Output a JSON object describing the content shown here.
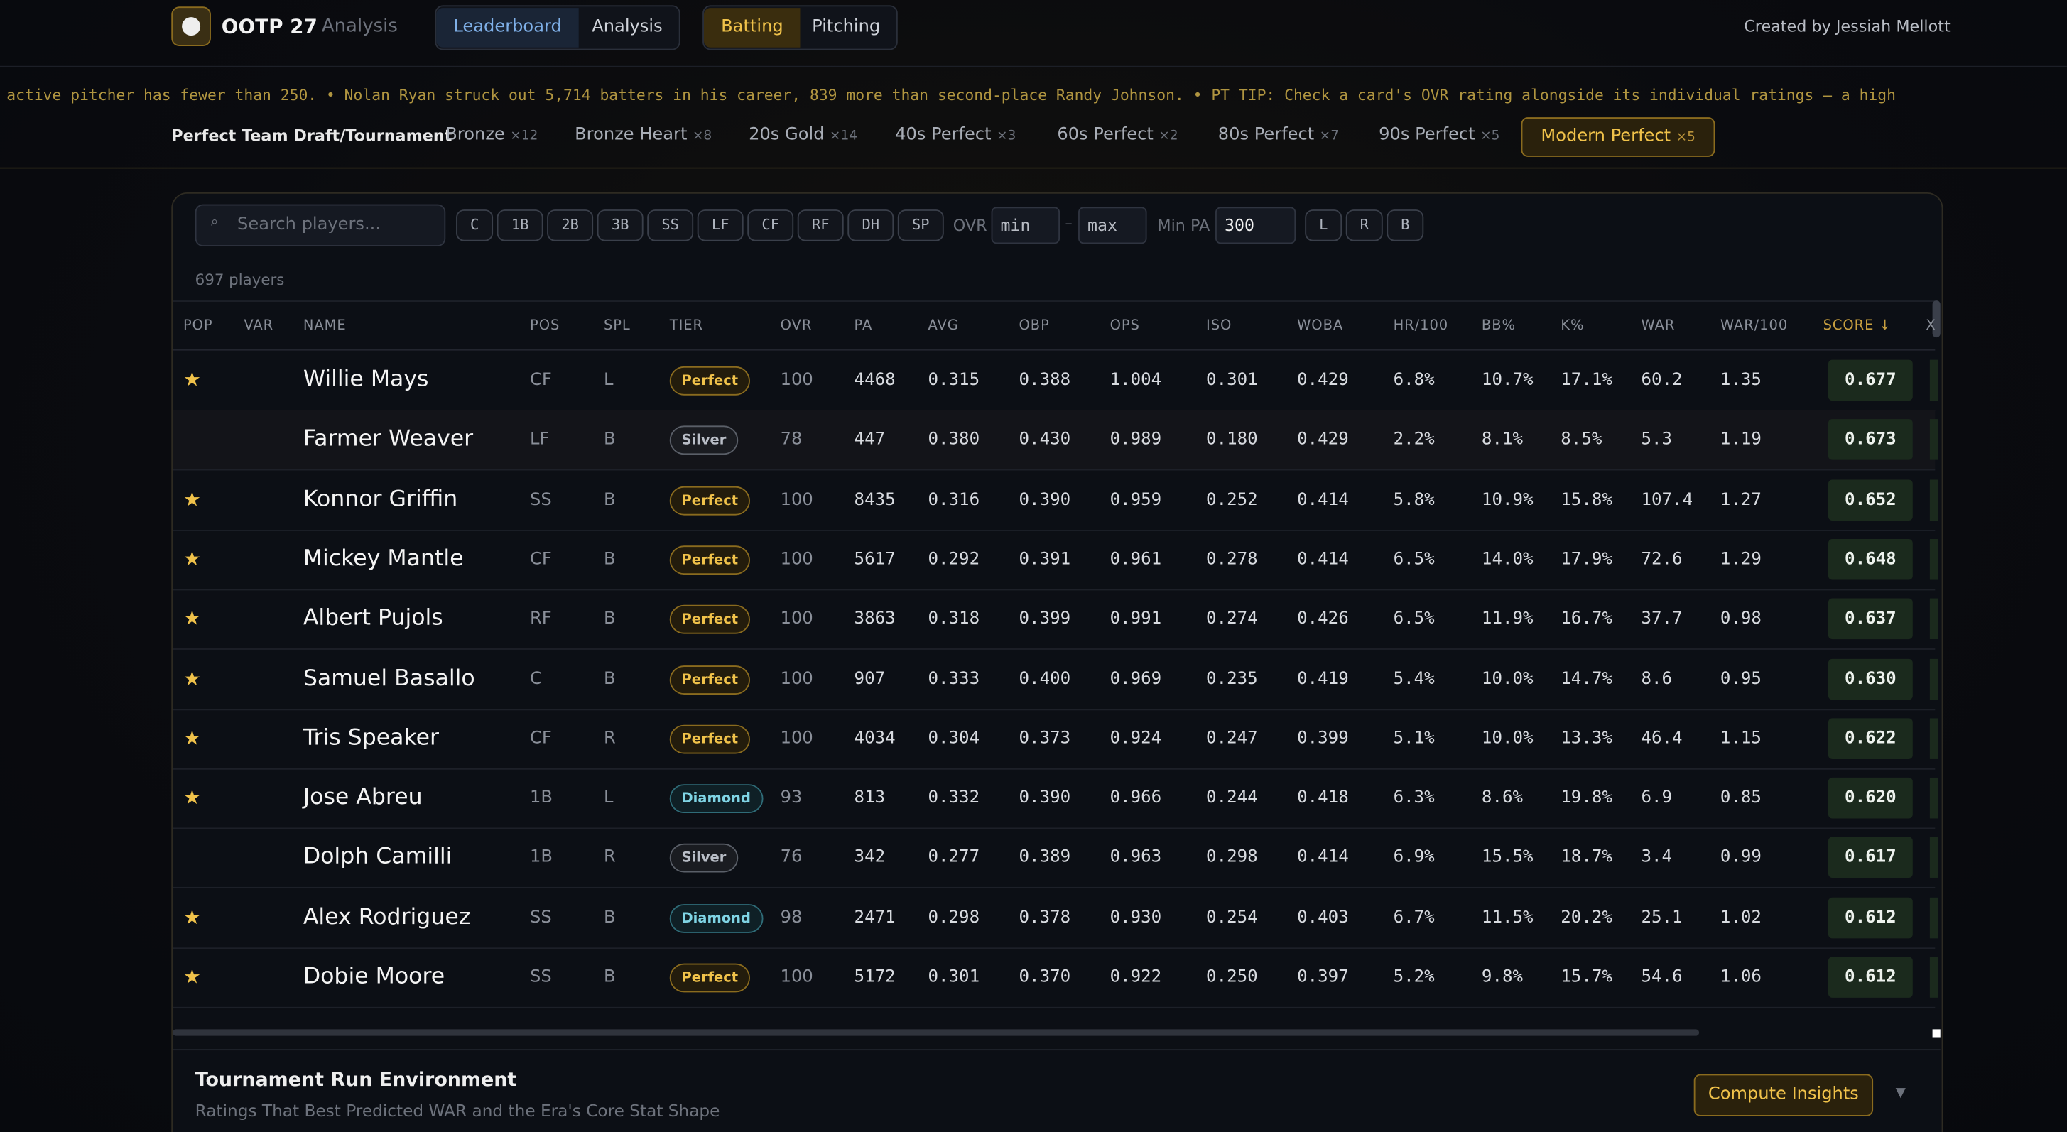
{
  "header": {
    "title": "OOTP 27",
    "subtitle": "Analysis",
    "nav": [
      "Leaderboard",
      "Analysis"
    ],
    "mode": [
      "Batting",
      "Pitching"
    ],
    "credit": "Created by Jessiah Mellott"
  },
  "ticker": "active pitcher has fewer than 250. • Nolan Ryan struck out 5,714 batters in his career, 839 more than second-place Randy Johnson. • PT TIP: Check a card's OVR rating alongside its individual ratings — a high",
  "tabs": {
    "label": "Perfect Team Draft/Tournament",
    "items": [
      {
        "name": "Bronze",
        "count": "×12"
      },
      {
        "name": "Bronze Heart",
        "count": "×8"
      },
      {
        "name": "20s Gold",
        "count": "×14"
      },
      {
        "name": "40s Perfect",
        "count": "×3"
      },
      {
        "name": "60s Perfect",
        "count": "×2"
      },
      {
        "name": "80s Perfect",
        "count": "×7"
      },
      {
        "name": "90s Perfect",
        "count": "×5"
      },
      {
        "name": "Modern Perfect",
        "count": "×5"
      }
    ]
  },
  "toolbar": {
    "search_placeholder": "Search players...",
    "positions": [
      "C",
      "1B",
      "2B",
      "3B",
      "SS",
      "LF",
      "CF",
      "RF",
      "DH",
      "SP"
    ],
    "ovr_label": "OVR",
    "ovr_min": "min",
    "ovr_max": "max",
    "min_pa_label": "Min PA",
    "min_pa": "300",
    "hands": [
      "L",
      "R",
      "B"
    ]
  },
  "player_count": "697 players",
  "table": {
    "columns": [
      "POP",
      "VAR",
      "NAME",
      "POS",
      "SPL",
      "TIER",
      "OVR",
      "PA",
      "AVG",
      "OBP",
      "OPS",
      "ISO",
      "WOBA",
      "HR/100",
      "BB%",
      "K%",
      "WAR",
      "WAR/100",
      "SCORE ↓",
      "X"
    ],
    "rows": [
      {
        "pop": true,
        "cells": [
          "Willie Mays",
          "CF",
          "L",
          "Perfect",
          "100",
          "4468",
          "0.315",
          "0.388",
          "1.004",
          "0.301",
          "0.429",
          "6.8%",
          "10.7%",
          "17.1%",
          "60.2",
          "1.35",
          "0.677"
        ]
      },
      {
        "pop": false,
        "cells": [
          "Farmer Weaver",
          "LF",
          "B",
          "Silver",
          "78",
          "447",
          "0.380",
          "0.430",
          "0.989",
          "0.180",
          "0.429",
          "2.2%",
          "8.1%",
          "8.5%",
          "5.3",
          "1.19",
          "0.673"
        ]
      },
      {
        "pop": true,
        "cells": [
          "Konnor Griffin",
          "SS",
          "B",
          "Perfect",
          "100",
          "8435",
          "0.316",
          "0.390",
          "0.959",
          "0.252",
          "0.414",
          "5.8%",
          "10.9%",
          "15.8%",
          "107.4",
          "1.27",
          "0.652"
        ]
      },
      {
        "pop": true,
        "cells": [
          "Mickey Mantle",
          "CF",
          "B",
          "Perfect",
          "100",
          "5617",
          "0.292",
          "0.391",
          "0.961",
          "0.278",
          "0.414",
          "6.5%",
          "14.0%",
          "17.9%",
          "72.6",
          "1.29",
          "0.648"
        ]
      },
      {
        "pop": true,
        "cells": [
          "Albert Pujols",
          "RF",
          "B",
          "Perfect",
          "100",
          "3863",
          "0.318",
          "0.399",
          "0.991",
          "0.274",
          "0.426",
          "6.5%",
          "11.9%",
          "16.7%",
          "37.7",
          "0.98",
          "0.637"
        ]
      },
      {
        "pop": true,
        "cells": [
          "Samuel Basallo",
          "C",
          "B",
          "Perfect",
          "100",
          "907",
          "0.333",
          "0.400",
          "0.969",
          "0.235",
          "0.419",
          "5.4%",
          "10.0%",
          "14.7%",
          "8.6",
          "0.95",
          "0.630"
        ]
      },
      {
        "pop": true,
        "cells": [
          "Tris Speaker",
          "CF",
          "R",
          "Perfect",
          "100",
          "4034",
          "0.304",
          "0.373",
          "0.924",
          "0.247",
          "0.399",
          "5.1%",
          "10.0%",
          "13.3%",
          "46.4",
          "1.15",
          "0.622"
        ]
      },
      {
        "pop": true,
        "cells": [
          "Jose Abreu",
          "1B",
          "L",
          "Diamond",
          "93",
          "813",
          "0.332",
          "0.390",
          "0.966",
          "0.244",
          "0.418",
          "6.3%",
          "8.6%",
          "19.8%",
          "6.9",
          "0.85",
          "0.620"
        ]
      },
      {
        "pop": false,
        "cells": [
          "Dolph Camilli",
          "1B",
          "R",
          "Silver",
          "76",
          "342",
          "0.277",
          "0.389",
          "0.963",
          "0.298",
          "0.414",
          "6.9%",
          "15.5%",
          "18.7%",
          "3.4",
          "0.99",
          "0.617"
        ]
      },
      {
        "pop": true,
        "cells": [
          "Alex Rodriguez",
          "SS",
          "B",
          "Diamond",
          "98",
          "2471",
          "0.298",
          "0.378",
          "0.930",
          "0.254",
          "0.403",
          "6.7%",
          "11.5%",
          "20.2%",
          "25.1",
          "1.02",
          "0.612"
        ]
      },
      {
        "pop": true,
        "cells": [
          "Dobie Moore",
          "SS",
          "B",
          "Perfect",
          "100",
          "5172",
          "0.301",
          "0.370",
          "0.922",
          "0.250",
          "0.397",
          "5.2%",
          "9.8%",
          "15.7%",
          "54.6",
          "1.06",
          "0.612"
        ]
      }
    ]
  },
  "footer": {
    "title": "Tournament Run Environment",
    "subtitle": "Ratings That Best Predicted WAR and the Era's Core Stat Shape",
    "button": "Compute Insights"
  }
}
